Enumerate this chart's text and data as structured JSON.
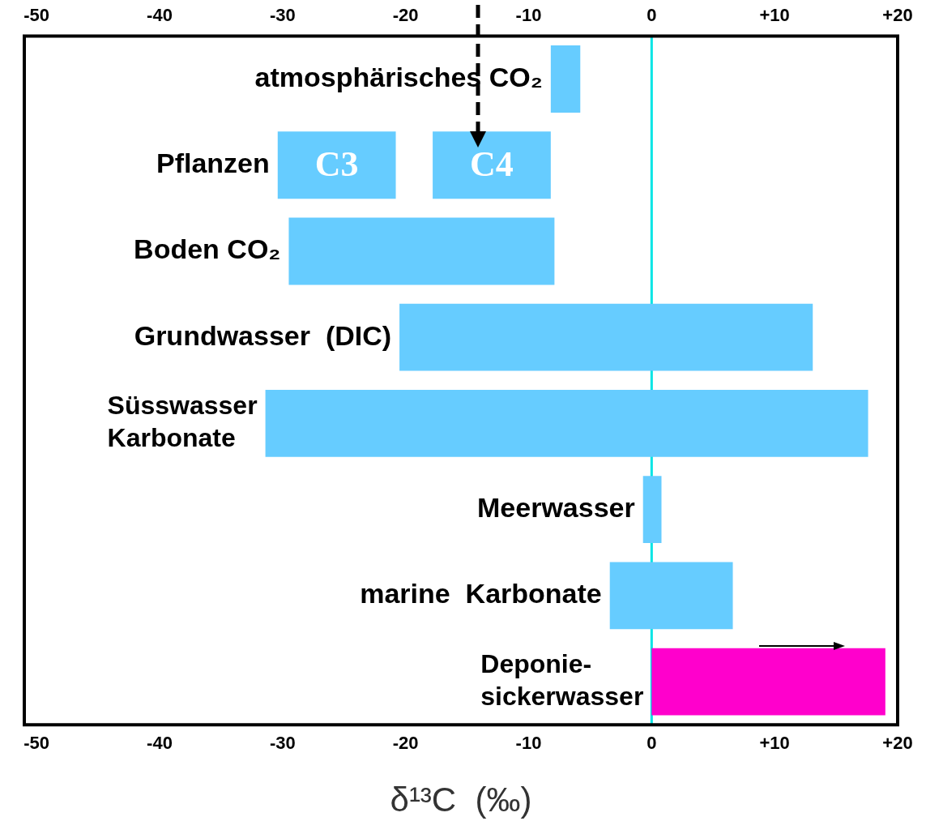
{
  "chart_data": {
    "type": "bar",
    "orientation": "horizontal",
    "xlabel": "δ¹³C  (‰)",
    "categories": [
      "atmosphärisches CO₂",
      "Pflanzen",
      "Boden CO₂",
      "Grundwasser  (DIC)",
      "Süsswasser\nKarbonate",
      "Meerwasser",
      "marine  Karbonate",
      "Deponie-\nsickerwasser"
    ],
    "series": [
      {
        "colors": [
          "#66ccff",
          "#66ccff",
          "#66ccff",
          "#66ccff",
          "#66ccff",
          "#66ccff",
          "#66ccff",
          "#ff00cc"
        ],
        "base": [
          -8.2,
          -30.4,
          -29.5,
          -20.5,
          -31.4,
          -0.7,
          -3.4,
          0
        ],
        "values": [
          2.4,
          9.6,
          21.6,
          33.6,
          49,
          1.5,
          10,
          19
        ]
      },
      {
        "colors": [
          null,
          "#66ccff",
          null,
          null,
          null,
          null,
          null,
          null
        ],
        "base": [
          null,
          -17.8,
          null,
          null,
          null,
          null,
          null,
          null
        ],
        "values": [
          null,
          9.6,
          null,
          null,
          null,
          null,
          null,
          null
        ]
      }
    ],
    "xlim": [
      -51,
      20
    ],
    "xticks": [
      -50,
      -40,
      -30,
      -20,
      -10,
      0,
      {
        "value": 10,
        "label": "+10"
      },
      {
        "value": 20,
        "label": "+20"
      }
    ],
    "x2lim": [
      -51,
      20
    ],
    "x2ticks": [
      -50,
      -40,
      -30,
      -20,
      -10,
      0,
      {
        "value": 10,
        "label": "+10"
      },
      {
        "value": 20,
        "label": "+20"
      }
    ],
    "ref_lines": [
      {
        "axis": "x",
        "value": 0,
        "color": "#00e5e5"
      }
    ],
    "annotations": [
      {
        "text": "C3",
        "x": -25.6,
        "y": "Pflanzen"
      },
      {
        "text": "C4",
        "x": -13,
        "y": "Pflanzen"
      }
    ]
  }
}
